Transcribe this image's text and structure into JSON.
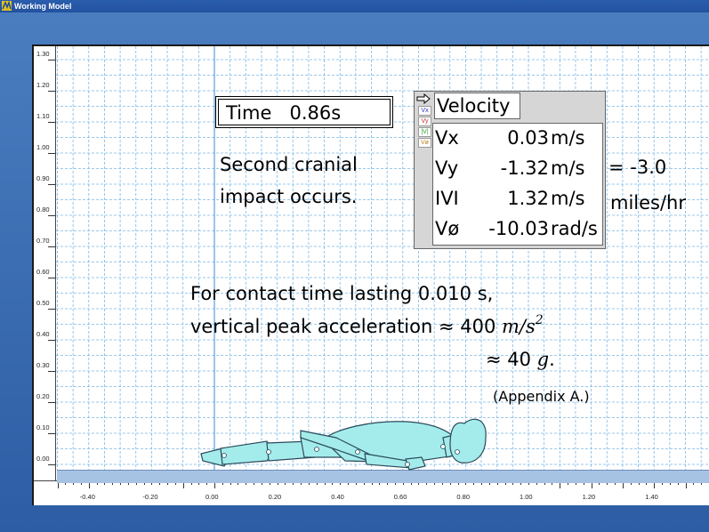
{
  "window": {
    "title": "Working Model"
  },
  "axes": {
    "y_ticks": [
      "1.30",
      "1.20",
      "1.10",
      "1.00",
      "0.90",
      "0.80",
      "0.70",
      "0.60",
      "0.50",
      "0.40",
      "0.30",
      "0.20",
      "0.10",
      "0.00"
    ],
    "x_ticks": [
      "-0.40",
      "-0.20",
      "0.00",
      "0.20",
      "0.40",
      "0.60",
      "0.80",
      "1.00",
      "1.20",
      "1.40"
    ]
  },
  "time_meter": {
    "label": "Time",
    "value": "0.86",
    "unit": "s"
  },
  "annotation": {
    "line1": "Second cranial",
    "line2": "impact occurs.",
    "equals": "= -3.0",
    "units_text": "miles/hr",
    "contact_line1": "For contact time lasting 0.010 s,",
    "contact_line2_text": "vertical peak acceleration ≈ 400 ",
    "contact_line2_unit": "m/s",
    "contact_line2_exp": "2",
    "contact_line3_prefix": "≈ 40 ",
    "contact_line3_g": "g",
    "contact_line3_suffix": ".",
    "appendix": "(Appendix A.)"
  },
  "velocity_meter": {
    "title": "Velocity",
    "chips": [
      "Vx",
      "Vy",
      "|V|",
      "Vø"
    ],
    "chip_colors": [
      "#3030c0",
      "#c03030",
      "#2a9a2a",
      "#c08020"
    ],
    "rows": [
      {
        "label": "Vx",
        "value": "0.03",
        "unit": "m/s"
      },
      {
        "label": "Vy",
        "value": "-1.32",
        "unit": "m/s"
      },
      {
        "label": "IVI",
        "value": "1.32",
        "unit": "m/s"
      },
      {
        "label": "Vø",
        "value": "-10.03",
        "unit": "rad/s"
      }
    ]
  },
  "colors": {
    "body_fill": "#a4ecec",
    "grid": "#79b8e6",
    "ground": "#a7c3e3"
  }
}
